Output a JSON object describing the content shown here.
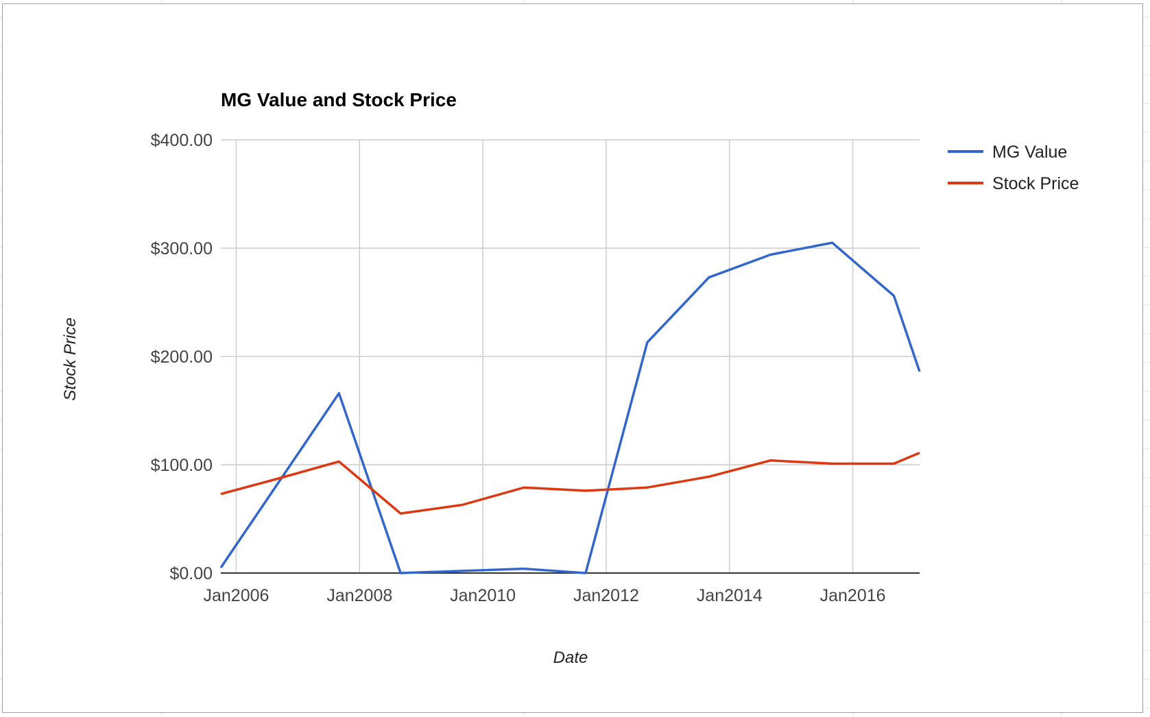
{
  "chart_data": {
    "type": "line",
    "title": "MG Value and Stock Price",
    "xlabel": "Date",
    "ylabel": "Stock Price",
    "x_tick_labels": [
      "Jan2006",
      "Jan2008",
      "Jan2010",
      "Jan2012",
      "Jan2014",
      "Jan2016"
    ],
    "x_tick_dates": [
      "2006-01",
      "2008-01",
      "2010-01",
      "2012-01",
      "2014-01",
      "2016-01"
    ],
    "xlim": [
      "2005-10",
      "2017-02"
    ],
    "y_tick_labels": [
      "$0.00",
      "$100.00",
      "$200.00",
      "$300.00",
      "$400.00"
    ],
    "y_ticks": [
      0,
      100,
      200,
      300,
      400
    ],
    "ylim": [
      0,
      400
    ],
    "grid": true,
    "legend_position": "right",
    "series": [
      {
        "name": "MG Value",
        "color": "#3366cc",
        "points": [
          {
            "x": "2005-10",
            "y": 5
          },
          {
            "x": "2007-09",
            "y": 166
          },
          {
            "x": "2008-09",
            "y": 0
          },
          {
            "x": "2010-09",
            "y": 4
          },
          {
            "x": "2011-09",
            "y": 0
          },
          {
            "x": "2012-09",
            "y": 213
          },
          {
            "x": "2013-09",
            "y": 273
          },
          {
            "x": "2014-09",
            "y": 294
          },
          {
            "x": "2015-09",
            "y": 305
          },
          {
            "x": "2016-09",
            "y": 256
          },
          {
            "x": "2017-02",
            "y": 186
          }
        ]
      },
      {
        "name": "Stock Price",
        "color": "#dc3912",
        "points": [
          {
            "x": "2005-10",
            "y": 73
          },
          {
            "x": "2006-09",
            "y": 87
          },
          {
            "x": "2007-09",
            "y": 103
          },
          {
            "x": "2008-09",
            "y": 55
          },
          {
            "x": "2009-09",
            "y": 63
          },
          {
            "x": "2010-09",
            "y": 79
          },
          {
            "x": "2011-09",
            "y": 76
          },
          {
            "x": "2012-09",
            "y": 79
          },
          {
            "x": "2013-09",
            "y": 89
          },
          {
            "x": "2014-09",
            "y": 104
          },
          {
            "x": "2015-09",
            "y": 101
          },
          {
            "x": "2016-09",
            "y": 101
          },
          {
            "x": "2017-02",
            "y": 111
          }
        ]
      }
    ]
  }
}
